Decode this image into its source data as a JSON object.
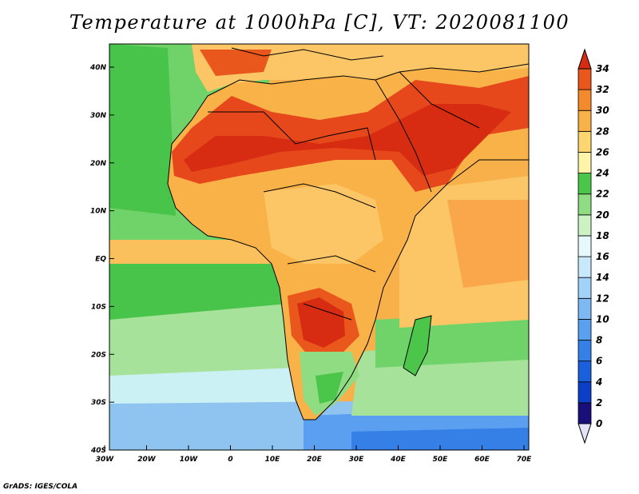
{
  "title": "Temperature at 1000hPa [C], VT: 2020081100",
  "credit": "GrADS: IGES/COLA",
  "map": {
    "lon_ticks": [
      "30W",
      "20W",
      "10W",
      "0",
      "10E",
      "20E",
      "30E",
      "40E",
      "50E",
      "60E",
      "70E"
    ],
    "lat_ticks": [
      "40N",
      "30N",
      "20N",
      "10N",
      "EQ",
      "10S",
      "20S",
      "30S",
      "40S"
    ]
  },
  "colorbar": {
    "labels": [
      "0",
      "2",
      "4",
      "6",
      "8",
      "10",
      "12",
      "14",
      "16",
      "18",
      "20",
      "22",
      "24",
      "26",
      "28",
      "30",
      "32",
      "34"
    ],
    "colors": [
      "#1a0f7a",
      "#0b3fc8",
      "#1a60dc",
      "#3480e6",
      "#5a9ff0",
      "#7dbaf4",
      "#a2d2f8",
      "#c8e8fb",
      "#e6f8fb",
      "#cdf2c4",
      "#8fdc83",
      "#4cc64a",
      "#fff4a8",
      "#fdd670",
      "#f9b248",
      "#f38a2c",
      "#e9571c",
      "#d82c12"
    ]
  },
  "field_colors": {
    "land_hot": "#d9361a",
    "land_warm": "#f39a36",
    "land_mild": "#fcc565",
    "ocean_warm": "#f7b04a",
    "ocean_green": "#49c44b",
    "ocean_light": "#a6e29a",
    "ocean_cool": "#ccf1f4",
    "ocean_cold": "#7fb7ef"
  }
}
